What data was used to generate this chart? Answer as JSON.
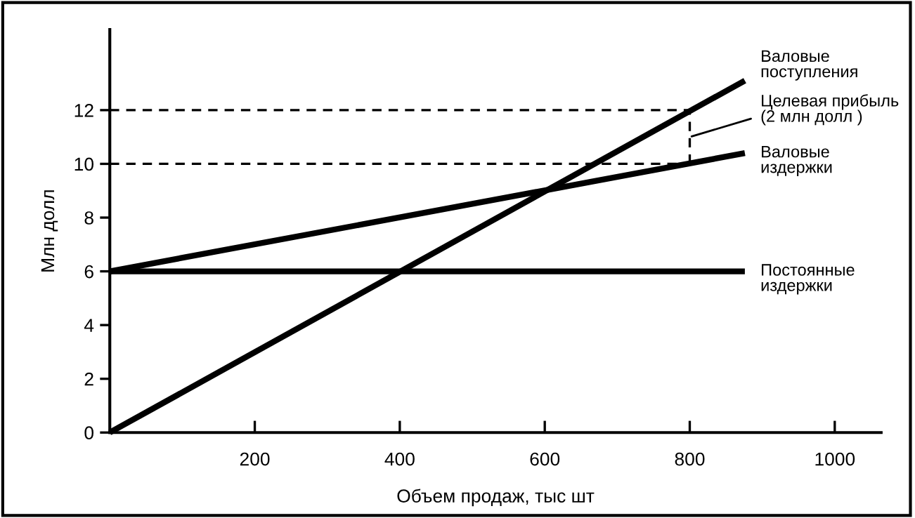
{
  "chart_data": {
    "type": "line",
    "xlabel": "Объем продаж, тыс шт",
    "ylabel": "Млн долл",
    "xlim": [
      0,
      1064
    ],
    "ylim": [
      0,
      15
    ],
    "xticks": [
      200,
      400,
      600,
      800,
      1000
    ],
    "yticks": [
      0,
      2,
      4,
      6,
      8,
      10,
      12
    ],
    "grid": false,
    "legend": false,
    "marker": "none",
    "series": [
      {
        "name": "Валовые поступления",
        "color": "#000000",
        "x": [
          0,
          876
        ],
        "values": [
          0,
          13.1
        ],
        "line_style": "solid"
      },
      {
        "name": "Валовые издержки",
        "color": "#000000",
        "x": [
          0,
          876
        ],
        "values": [
          6,
          10.4
        ],
        "line_style": "solid"
      },
      {
        "name": "Постоянные издержки",
        "color": "#000000",
        "x": [
          0,
          876
        ],
        "values": [
          6,
          6
        ],
        "line_style": "solid"
      },
      {
        "color": "#000000",
        "x": [
          0,
          800
        ],
        "values": [
          12,
          12
        ],
        "line_style": "dashed"
      },
      {
        "color": "#000000",
        "x": [
          0,
          800
        ],
        "values": [
          10,
          10
        ],
        "line_style": "dashed"
      },
      {
        "color": "#000000",
        "x": [
          800,
          800
        ],
        "values": [
          10,
          12
        ],
        "line_style": "dashed"
      }
    ],
    "annotations": [
      {
        "text": "Целевая прибыль\n(2 млн долл )",
        "x": 800,
        "y": 11
      }
    ]
  }
}
